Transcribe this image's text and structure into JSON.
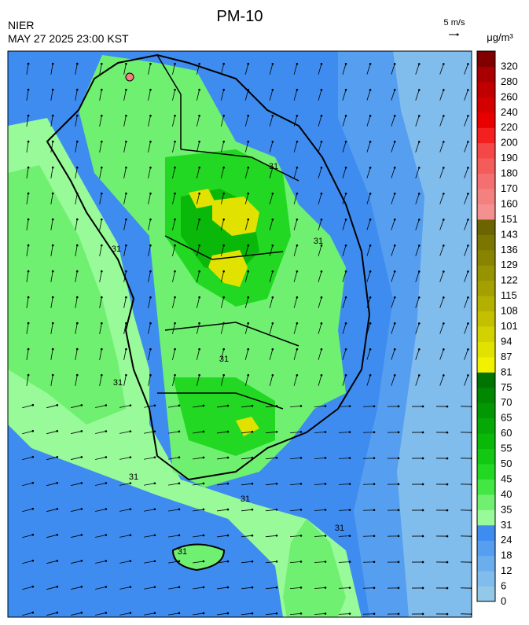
{
  "header": {
    "title": "PM-10",
    "source": "NIER",
    "timestamp": "MAY 27 2025 23:00 KST",
    "wind_scale": "5 m/s",
    "unit": "μg/m³"
  },
  "colorbar": {
    "levels": [
      0,
      6,
      12,
      18,
      24,
      31,
      35,
      40,
      45,
      50,
      55,
      60,
      65,
      70,
      75,
      81,
      87,
      94,
      101,
      108,
      115,
      122,
      129,
      136,
      143,
      151,
      160,
      170,
      180,
      190,
      200,
      220,
      240,
      260,
      280,
      320
    ],
    "colors": [
      "#92c8e8",
      "#80bcec",
      "#6aaeee",
      "#559ef0",
      "#3e8cf0",
      "#98fa98",
      "#70f070",
      "#44e644",
      "#22d822",
      "#12c812",
      "#0ab80a",
      "#06a806",
      "#039803",
      "#018801",
      "#007400",
      "#f2f200",
      "#e2e200",
      "#d2d200",
      "#c4c000",
      "#b4b000",
      "#a4a000",
      "#969200",
      "#888400",
      "#7a7600",
      "#6c6400",
      "#f49090",
      "#f48080",
      "#f47070",
      "#f45c5c",
      "#f44848",
      "#f42020",
      "#e80000",
      "#d40000",
      "#c00000",
      "#a80000",
      "#800000"
    ]
  },
  "map": {
    "contour_labels": [
      "31",
      "31",
      "31",
      "31",
      "31",
      "31",
      "31",
      "31",
      "31"
    ]
  }
}
